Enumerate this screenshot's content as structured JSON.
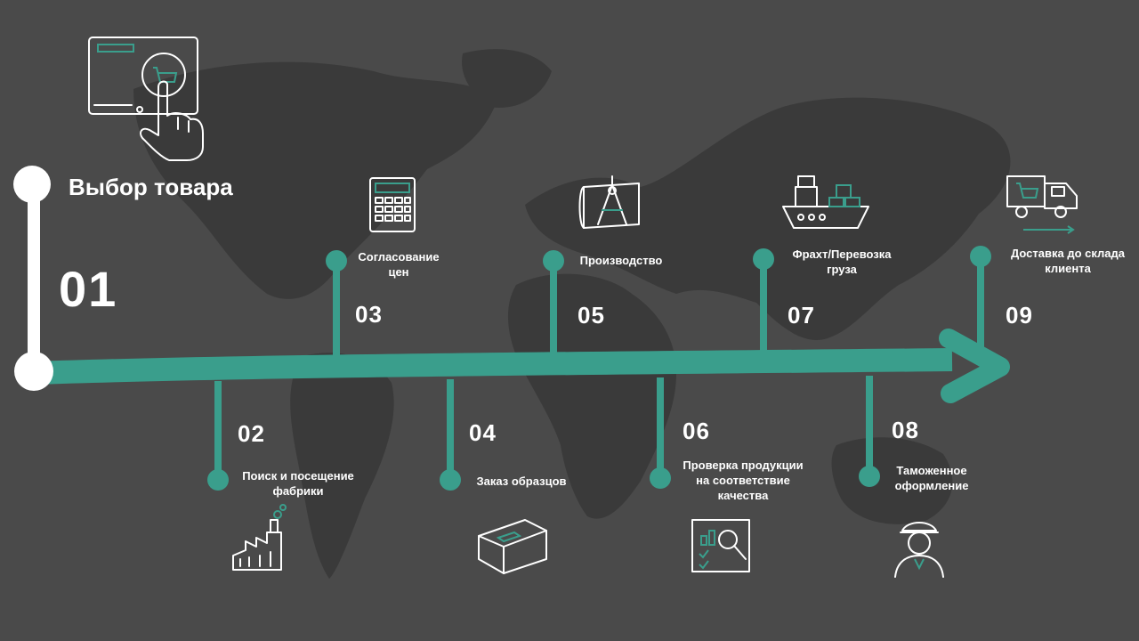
{
  "colors": {
    "background": "#4a4a4a",
    "map": "#3a3a3a",
    "accent": "#3a9e8c",
    "text": "#ffffff"
  },
  "start": {
    "title": "Выбор товара",
    "number": "01",
    "icon": "touchscreen-cart-icon"
  },
  "steps": [
    {
      "number": "02",
      "label_lines": [
        "Поиск и посещение",
        "фабрики"
      ],
      "icon": "factory-icon"
    },
    {
      "number": "03",
      "label_lines": [
        "Согласование",
        "цен"
      ],
      "icon": "calculator-icon"
    },
    {
      "number": "04",
      "label_lines": [
        "Заказ образцов"
      ],
      "icon": "box-icon"
    },
    {
      "number": "05",
      "label_lines": [
        "Производство"
      ],
      "icon": "blueprint-compass-icon"
    },
    {
      "number": "06",
      "label_lines": [
        "Проверка продукции",
        "на соответствие",
        "качества"
      ],
      "icon": "magnifier-report-icon"
    },
    {
      "number": "07",
      "label_lines": [
        "Фрахт/Перевозка",
        "груза"
      ],
      "icon": "cargo-ship-icon"
    },
    {
      "number": "08",
      "label_lines": [
        "Таможенное",
        "оформление"
      ],
      "icon": "customs-officer-icon"
    },
    {
      "number": "09",
      "label_lines": [
        "Доставка до склада",
        "клиента"
      ],
      "icon": "delivery-truck-icon"
    }
  ]
}
